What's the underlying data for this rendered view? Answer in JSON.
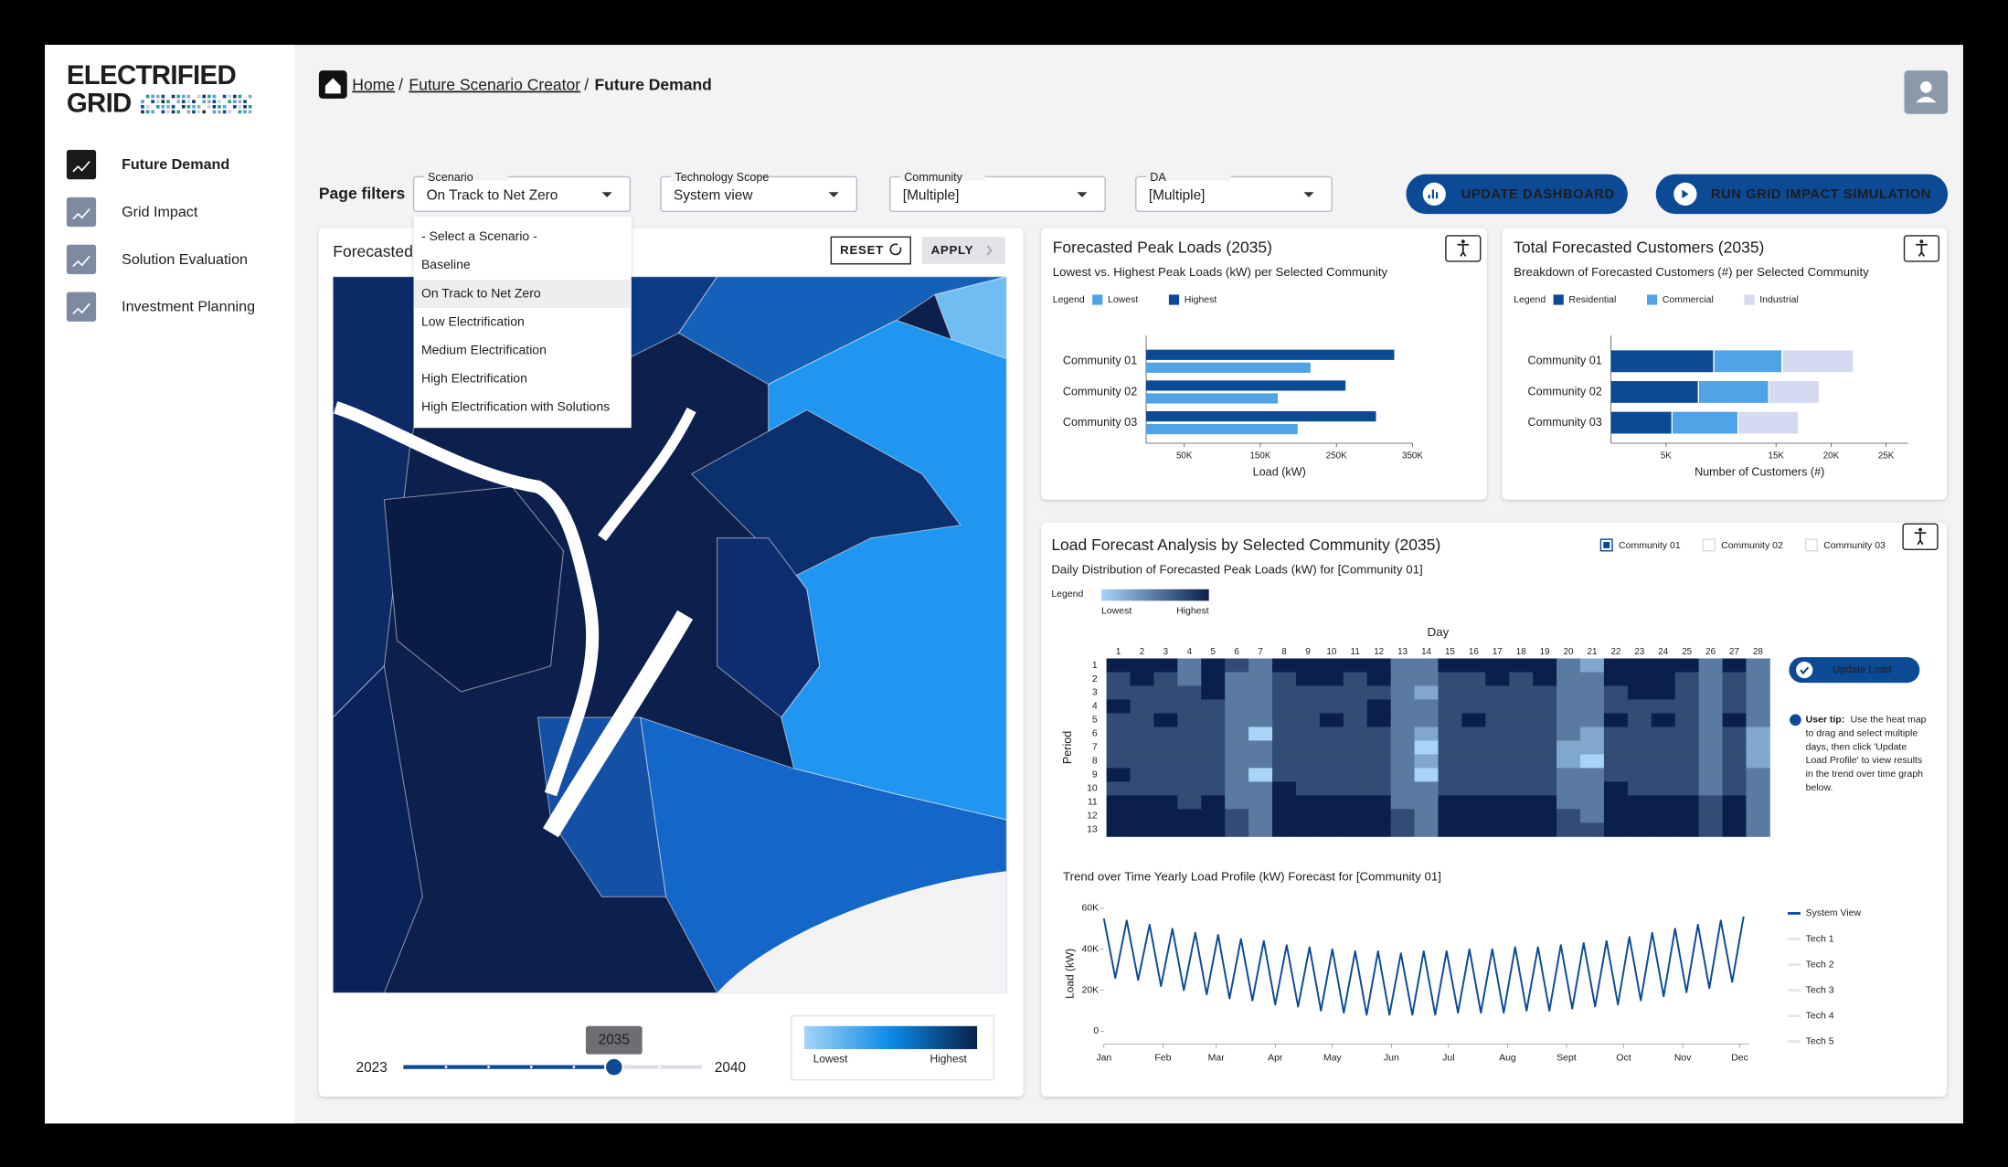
{
  "brand": {
    "line1": "ELECTRIFIED",
    "line2": "GRID"
  },
  "nav": [
    "Future Demand",
    "Grid Impact",
    "Solution Evaluation",
    "Investment Planning"
  ],
  "breadcrumb": [
    "Home",
    "Future Scenario Creator",
    "Future Demand"
  ],
  "filters": {
    "label": "Page filters",
    "items": [
      {
        "label": "Scenario",
        "value": "On Track to Net Zero"
      },
      {
        "label": "Technology Scope",
        "value": "System view"
      },
      {
        "label": "Community",
        "value": "[Multiple]"
      },
      {
        "label": "DA",
        "value": "[Multiple]"
      }
    ]
  },
  "buttons": [
    "UPDATE DASHBOARD",
    "RUN GRID IMPACT SIMULATION"
  ],
  "dropdown": [
    "- Select a Scenario -",
    "Baseline",
    "On Track to Net Zero",
    "Low Electrification",
    "Medium Electrification",
    "High Electrification",
    "High Electrification with Solutions"
  ],
  "map": {
    "title": "Forecasted",
    "buttons": [
      "RESET",
      "APPLY"
    ],
    "legend": [
      "Lowest",
      "Highest"
    ],
    "slider": {
      "min": 2023,
      "max": 2040,
      "value": 2035
    }
  },
  "chart_data": [
    {
      "type": "bar",
      "orientation": "horizontal",
      "title": "Forecasted Peak Loads (2035)",
      "subtitle": "Lowest vs. Highest Peak Loads (kW) per Selected Community",
      "legend_title": "Legend",
      "categories": [
        "Community 01",
        "Community 02",
        "Community 03"
      ],
      "series": [
        {
          "name": "Lowest",
          "color": "#4fa3e6",
          "values": [
            216000,
            173000,
            199000
          ]
        },
        {
          "name": "Highest",
          "color": "#0d4a96",
          "values": [
            326000,
            262000,
            302000
          ]
        }
      ],
      "xlabel": "Load (kW)",
      "xlim": [
        0,
        350000
      ],
      "xticks": [
        {
          "value": 50000,
          "label": "50K"
        },
        {
          "value": 150000,
          "label": "150K"
        },
        {
          "value": 250000,
          "label": "250K"
        },
        {
          "value": 350000,
          "label": "350K"
        }
      ]
    },
    {
      "type": "bar",
      "orientation": "horizontal",
      "stacked": true,
      "title": "Total Forecasted Customers (2035)",
      "subtitle": "Breakdown of Forecasted Customers (#) per Selected Community",
      "legend_title": "Legend",
      "categories": [
        "Community 01",
        "Community 02",
        "Community 03"
      ],
      "series": [
        {
          "name": "Residential",
          "color": "#0d4a96",
          "values": [
            9400,
            8000,
            5600
          ]
        },
        {
          "name": "Commercial",
          "color": "#4fa3e6",
          "values": [
            6200,
            6400,
            6000
          ]
        },
        {
          "name": "Industrial",
          "color": "#d5daf0",
          "values": [
            6500,
            4600,
            5500
          ]
        }
      ],
      "xlabel": "Number of Customers (#)",
      "xlim": [
        0,
        27000
      ],
      "xticks": [
        {
          "value": 5000,
          "label": "5K"
        },
        {
          "value": 15000,
          "label": "15K"
        },
        {
          "value": 20000,
          "label": "20K"
        },
        {
          "value": 25000,
          "label": "25K"
        }
      ]
    },
    {
      "type": "heatmap",
      "title": "Load Forecast Analysis by Selected Community (2035)",
      "subtitle": "Daily Distribution of Forecasted Peak Loads (kW) for [Community 01]",
      "legend_title": "Legend",
      "legend_labels": [
        "Lowest",
        "Highest"
      ],
      "colors": [
        "#a9d4f7",
        "#0a1f4a"
      ],
      "selector": [
        "Community 01",
        "Community 02",
        "Community 03"
      ],
      "xlabel": "Day",
      "ylabel": "Period",
      "x": [
        1,
        2,
        3,
        4,
        5,
        6,
        7,
        8,
        9,
        10,
        11,
        12,
        13,
        14,
        15,
        16,
        17,
        18,
        19,
        20,
        21,
        22,
        23,
        24,
        25,
        26,
        27,
        28
      ],
      "y": [
        1,
        2,
        3,
        4,
        5,
        6,
        7,
        8,
        9,
        10,
        11,
        12,
        13
      ],
      "values": [
        [
          5,
          5,
          5,
          3,
          5,
          4,
          3,
          5,
          5,
          5,
          5,
          5,
          3,
          3,
          5,
          5,
          5,
          5,
          5,
          3,
          2,
          5,
          5,
          5,
          5,
          3,
          5,
          3
        ],
        [
          4,
          5,
          4,
          3,
          5,
          3,
          3,
          4,
          5,
          5,
          4,
          5,
          3,
          3,
          4,
          4,
          5,
          4,
          5,
          3,
          3,
          5,
          5,
          5,
          4,
          3,
          4,
          3
        ],
        [
          4,
          4,
          4,
          4,
          5,
          3,
          3,
          4,
          4,
          4,
          4,
          4,
          3,
          2,
          4,
          4,
          4,
          4,
          4,
          3,
          3,
          4,
          5,
          5,
          4,
          3,
          4,
          3
        ],
        [
          5,
          4,
          4,
          4,
          4,
          3,
          3,
          4,
          4,
          4,
          4,
          5,
          3,
          3,
          4,
          4,
          4,
          4,
          4,
          3,
          3,
          4,
          4,
          4,
          4,
          3,
          4,
          3
        ],
        [
          4,
          4,
          5,
          4,
          4,
          3,
          3,
          4,
          4,
          5,
          4,
          5,
          3,
          3,
          4,
          5,
          4,
          4,
          4,
          3,
          3,
          5,
          4,
          5,
          4,
          3,
          5,
          3
        ],
        [
          4,
          4,
          4,
          4,
          4,
          3,
          1,
          4,
          4,
          4,
          4,
          4,
          3,
          2,
          4,
          4,
          4,
          4,
          4,
          3,
          2,
          4,
          4,
          4,
          4,
          3,
          4,
          2
        ],
        [
          4,
          4,
          4,
          4,
          4,
          3,
          3,
          4,
          4,
          4,
          4,
          4,
          3,
          1,
          4,
          4,
          4,
          4,
          4,
          2,
          2,
          4,
          4,
          4,
          4,
          3,
          4,
          2
        ],
        [
          4,
          4,
          4,
          4,
          4,
          3,
          3,
          4,
          4,
          4,
          4,
          4,
          3,
          2,
          4,
          4,
          4,
          4,
          4,
          2,
          1,
          4,
          4,
          4,
          4,
          3,
          4,
          2
        ],
        [
          5,
          4,
          4,
          4,
          4,
          3,
          1,
          4,
          4,
          4,
          4,
          4,
          3,
          1,
          4,
          4,
          4,
          4,
          4,
          3,
          3,
          4,
          4,
          4,
          4,
          3,
          4,
          3
        ],
        [
          4,
          4,
          4,
          4,
          4,
          3,
          3,
          5,
          4,
          4,
          4,
          4,
          3,
          3,
          4,
          4,
          4,
          4,
          4,
          3,
          3,
          5,
          4,
          4,
          4,
          3,
          4,
          3
        ],
        [
          5,
          5,
          5,
          4,
          5,
          3,
          3,
          5,
          5,
          5,
          5,
          5,
          3,
          3,
          5,
          5,
          5,
          5,
          5,
          3,
          3,
          5,
          5,
          5,
          5,
          4,
          5,
          3
        ],
        [
          5,
          5,
          5,
          5,
          5,
          4,
          3,
          5,
          5,
          5,
          5,
          5,
          4,
          3,
          5,
          5,
          5,
          5,
          5,
          4,
          3,
          5,
          5,
          5,
          5,
          4,
          5,
          3
        ],
        [
          5,
          5,
          5,
          5,
          5,
          4,
          3,
          5,
          5,
          5,
          5,
          5,
          4,
          3,
          5,
          5,
          5,
          5,
          5,
          4,
          4,
          5,
          5,
          5,
          5,
          4,
          5,
          3
        ]
      ],
      "button": "Update Load",
      "tip_title": "User tip:",
      "tip": [
        "Use the heat map",
        "to drag and select multiple",
        "days, then click 'Update",
        "Load Profile' to view results",
        "in the trend over time graph",
        "below."
      ]
    },
    {
      "type": "line",
      "title": "Trend over Time Yearly Load Profile (kW) Forecast for [Community 01]",
      "ylabel": "Load (kW)",
      "x": [
        1,
        7,
        13,
        19,
        25,
        31,
        37,
        43,
        49,
        55,
        61,
        67,
        73,
        79,
        85,
        91,
        97,
        103,
        109,
        115,
        121,
        127,
        133,
        139,
        145,
        151,
        157,
        163,
        169,
        175,
        181,
        187,
        193,
        199,
        205,
        211,
        217,
        223,
        229,
        235,
        241,
        247,
        253,
        259,
        265,
        271,
        277,
        283,
        289,
        295,
        301,
        307,
        313,
        319,
        325,
        331,
        337
      ],
      "series": [
        {
          "name": "System View",
          "color": "#0d4a96",
          "values": [
            55000,
            26000,
            54000,
            25000,
            52000,
            22000,
            50000,
            20000,
            48000,
            18000,
            47000,
            16000,
            45000,
            15000,
            44000,
            13000,
            42000,
            12000,
            41000,
            10000,
            40000,
            9000,
            39000,
            8000,
            39000,
            8000,
            38000,
            8000,
            39000,
            8000,
            39000,
            9000,
            40000,
            9000,
            40000,
            9000,
            41000,
            10000,
            41000,
            10000,
            42000,
            11000,
            43000,
            12000,
            44000,
            13000,
            46000,
            15000,
            48000,
            17000,
            50000,
            19000,
            52000,
            21000,
            54000,
            24000,
            56000
          ]
        }
      ],
      "inactive_legend": [
        "Tech 1",
        "Tech 2",
        "Tech 3",
        "Tech 4",
        "Tech 5"
      ],
      "xlim": [
        1,
        340
      ],
      "xticks": [
        {
          "value": 1,
          "label": "Jan"
        },
        {
          "value": 32,
          "label": "Feb"
        },
        {
          "value": 60,
          "label": "Mar"
        },
        {
          "value": 91,
          "label": "Apr"
        },
        {
          "value": 121,
          "label": "May"
        },
        {
          "value": 152,
          "label": "Jun"
        },
        {
          "value": 182,
          "label": "Jul"
        },
        {
          "value": 213,
          "label": "Aug"
        },
        {
          "value": 244,
          "label": "Sept"
        },
        {
          "value": 274,
          "label": "Oct"
        },
        {
          "value": 305,
          "label": "Nov"
        },
        {
          "value": 335,
          "label": "Dec"
        }
      ],
      "ylim": [
        0,
        60000
      ],
      "yticks": [
        0,
        {
          "value": 20000,
          "label": "20K"
        },
        {
          "value": 40000,
          "label": "40K"
        },
        {
          "value": 60000,
          "label": "60K"
        }
      ]
    }
  ]
}
